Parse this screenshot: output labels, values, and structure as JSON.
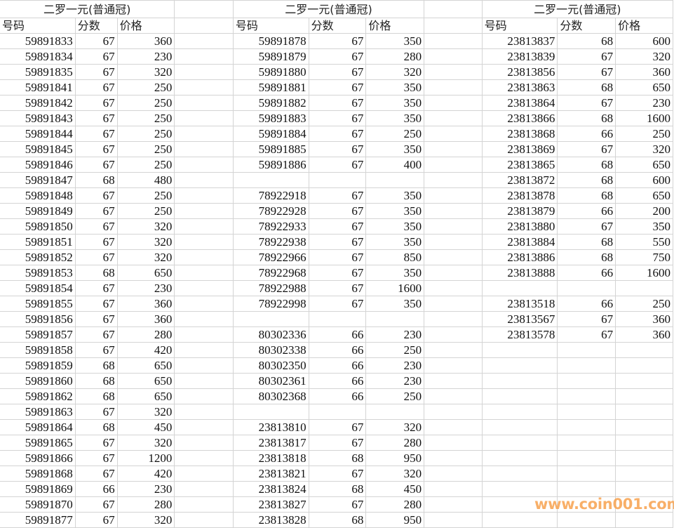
{
  "blocks": [
    {
      "title": "二罗一元(普通冠)",
      "headers": [
        "号码",
        "分数",
        "价格"
      ],
      "rows": [
        [
          "59891833",
          "67",
          "360"
        ],
        [
          "59891834",
          "67",
          "230"
        ],
        [
          "59891835",
          "67",
          "320"
        ],
        [
          "59891841",
          "67",
          "250"
        ],
        [
          "59891842",
          "67",
          "250"
        ],
        [
          "59891843",
          "67",
          "250"
        ],
        [
          "59891844",
          "67",
          "250"
        ],
        [
          "59891845",
          "67",
          "250"
        ],
        [
          "59891846",
          "67",
          "250"
        ],
        [
          "59891847",
          "68",
          "480"
        ],
        [
          "59891848",
          "67",
          "250"
        ],
        [
          "59891849",
          "67",
          "250"
        ],
        [
          "59891850",
          "67",
          "320"
        ],
        [
          "59891851",
          "67",
          "320"
        ],
        [
          "59891852",
          "67",
          "320"
        ],
        [
          "59891853",
          "68",
          "650"
        ],
        [
          "59891854",
          "67",
          "230"
        ],
        [
          "59891855",
          "67",
          "360"
        ],
        [
          "59891856",
          "67",
          "360"
        ],
        [
          "59891857",
          "67",
          "280"
        ],
        [
          "59891858",
          "67",
          "420"
        ],
        [
          "59891859",
          "68",
          "650"
        ],
        [
          "59891860",
          "68",
          "650"
        ],
        [
          "59891862",
          "68",
          "650"
        ],
        [
          "59891863",
          "67",
          "320"
        ],
        [
          "59891864",
          "68",
          "450"
        ],
        [
          "59891865",
          "67",
          "320"
        ],
        [
          "59891866",
          "67",
          "1200"
        ],
        [
          "59891868",
          "67",
          "420"
        ],
        [
          "59891869",
          "66",
          "230"
        ],
        [
          "59891870",
          "67",
          "280"
        ],
        [
          "59891877",
          "67",
          "320"
        ]
      ]
    },
    {
      "title": "二罗一元(普通冠)",
      "headers": [
        "号码",
        "分数",
        "价格"
      ],
      "rows": [
        [
          "59891878",
          "67",
          "350"
        ],
        [
          "59891879",
          "67",
          "280"
        ],
        [
          "59891880",
          "67",
          "320"
        ],
        [
          "59891881",
          "67",
          "350"
        ],
        [
          "59891882",
          "67",
          "350"
        ],
        [
          "59891883",
          "67",
          "350"
        ],
        [
          "59891884",
          "67",
          "250"
        ],
        [
          "59891885",
          "67",
          "350"
        ],
        [
          "59891886",
          "67",
          "400"
        ],
        [
          "",
          "",
          ""
        ],
        [
          "78922918",
          "67",
          "350"
        ],
        [
          "78922928",
          "67",
          "350"
        ],
        [
          "78922933",
          "67",
          "350"
        ],
        [
          "78922938",
          "67",
          "350"
        ],
        [
          "78922966",
          "67",
          "850"
        ],
        [
          "78922968",
          "67",
          "350"
        ],
        [
          "78922988",
          "67",
          "1600"
        ],
        [
          "78922998",
          "67",
          "350"
        ],
        [
          "",
          "",
          ""
        ],
        [
          "80302336",
          "66",
          "230"
        ],
        [
          "80302338",
          "66",
          "250"
        ],
        [
          "80302350",
          "66",
          "230"
        ],
        [
          "80302361",
          "66",
          "230"
        ],
        [
          "80302368",
          "66",
          "250"
        ],
        [
          "",
          "",
          ""
        ],
        [
          "23813810",
          "67",
          "320"
        ],
        [
          "23813817",
          "67",
          "280"
        ],
        [
          "23813818",
          "68",
          "950"
        ],
        [
          "23813821",
          "67",
          "320"
        ],
        [
          "23813824",
          "68",
          "450"
        ],
        [
          "23813827",
          "67",
          "280"
        ],
        [
          "23813828",
          "68",
          "950"
        ]
      ]
    },
    {
      "title": "二罗一元(普通冠)",
      "headers": [
        "号码",
        "分数",
        "价格"
      ],
      "rows": [
        [
          "23813837",
          "68",
          "600"
        ],
        [
          "23813839",
          "67",
          "320"
        ],
        [
          "23813856",
          "67",
          "360"
        ],
        [
          "23813863",
          "68",
          "650"
        ],
        [
          "23813864",
          "67",
          "230"
        ],
        [
          "23813866",
          "68",
          "1600"
        ],
        [
          "23813868",
          "66",
          "250"
        ],
        [
          "23813869",
          "67",
          "320"
        ],
        [
          "23813865",
          "68",
          "650"
        ],
        [
          "23813872",
          "68",
          "600"
        ],
        [
          "23813878",
          "68",
          "650"
        ],
        [
          "23813879",
          "66",
          "200"
        ],
        [
          "23813880",
          "67",
          "350"
        ],
        [
          "23813884",
          "68",
          "550"
        ],
        [
          "23813886",
          "68",
          "750"
        ],
        [
          "23813888",
          "66",
          "1600"
        ],
        [
          "",
          "",
          ""
        ],
        [
          "23813518",
          "66",
          "250"
        ],
        [
          "23813567",
          "67",
          "360"
        ],
        [
          "23813578",
          "67",
          "360"
        ]
      ]
    }
  ],
  "watermark": "www.coin001.com",
  "colors": {
    "gridline": "#d4d4d4",
    "watermark": "#f7a24e"
  }
}
